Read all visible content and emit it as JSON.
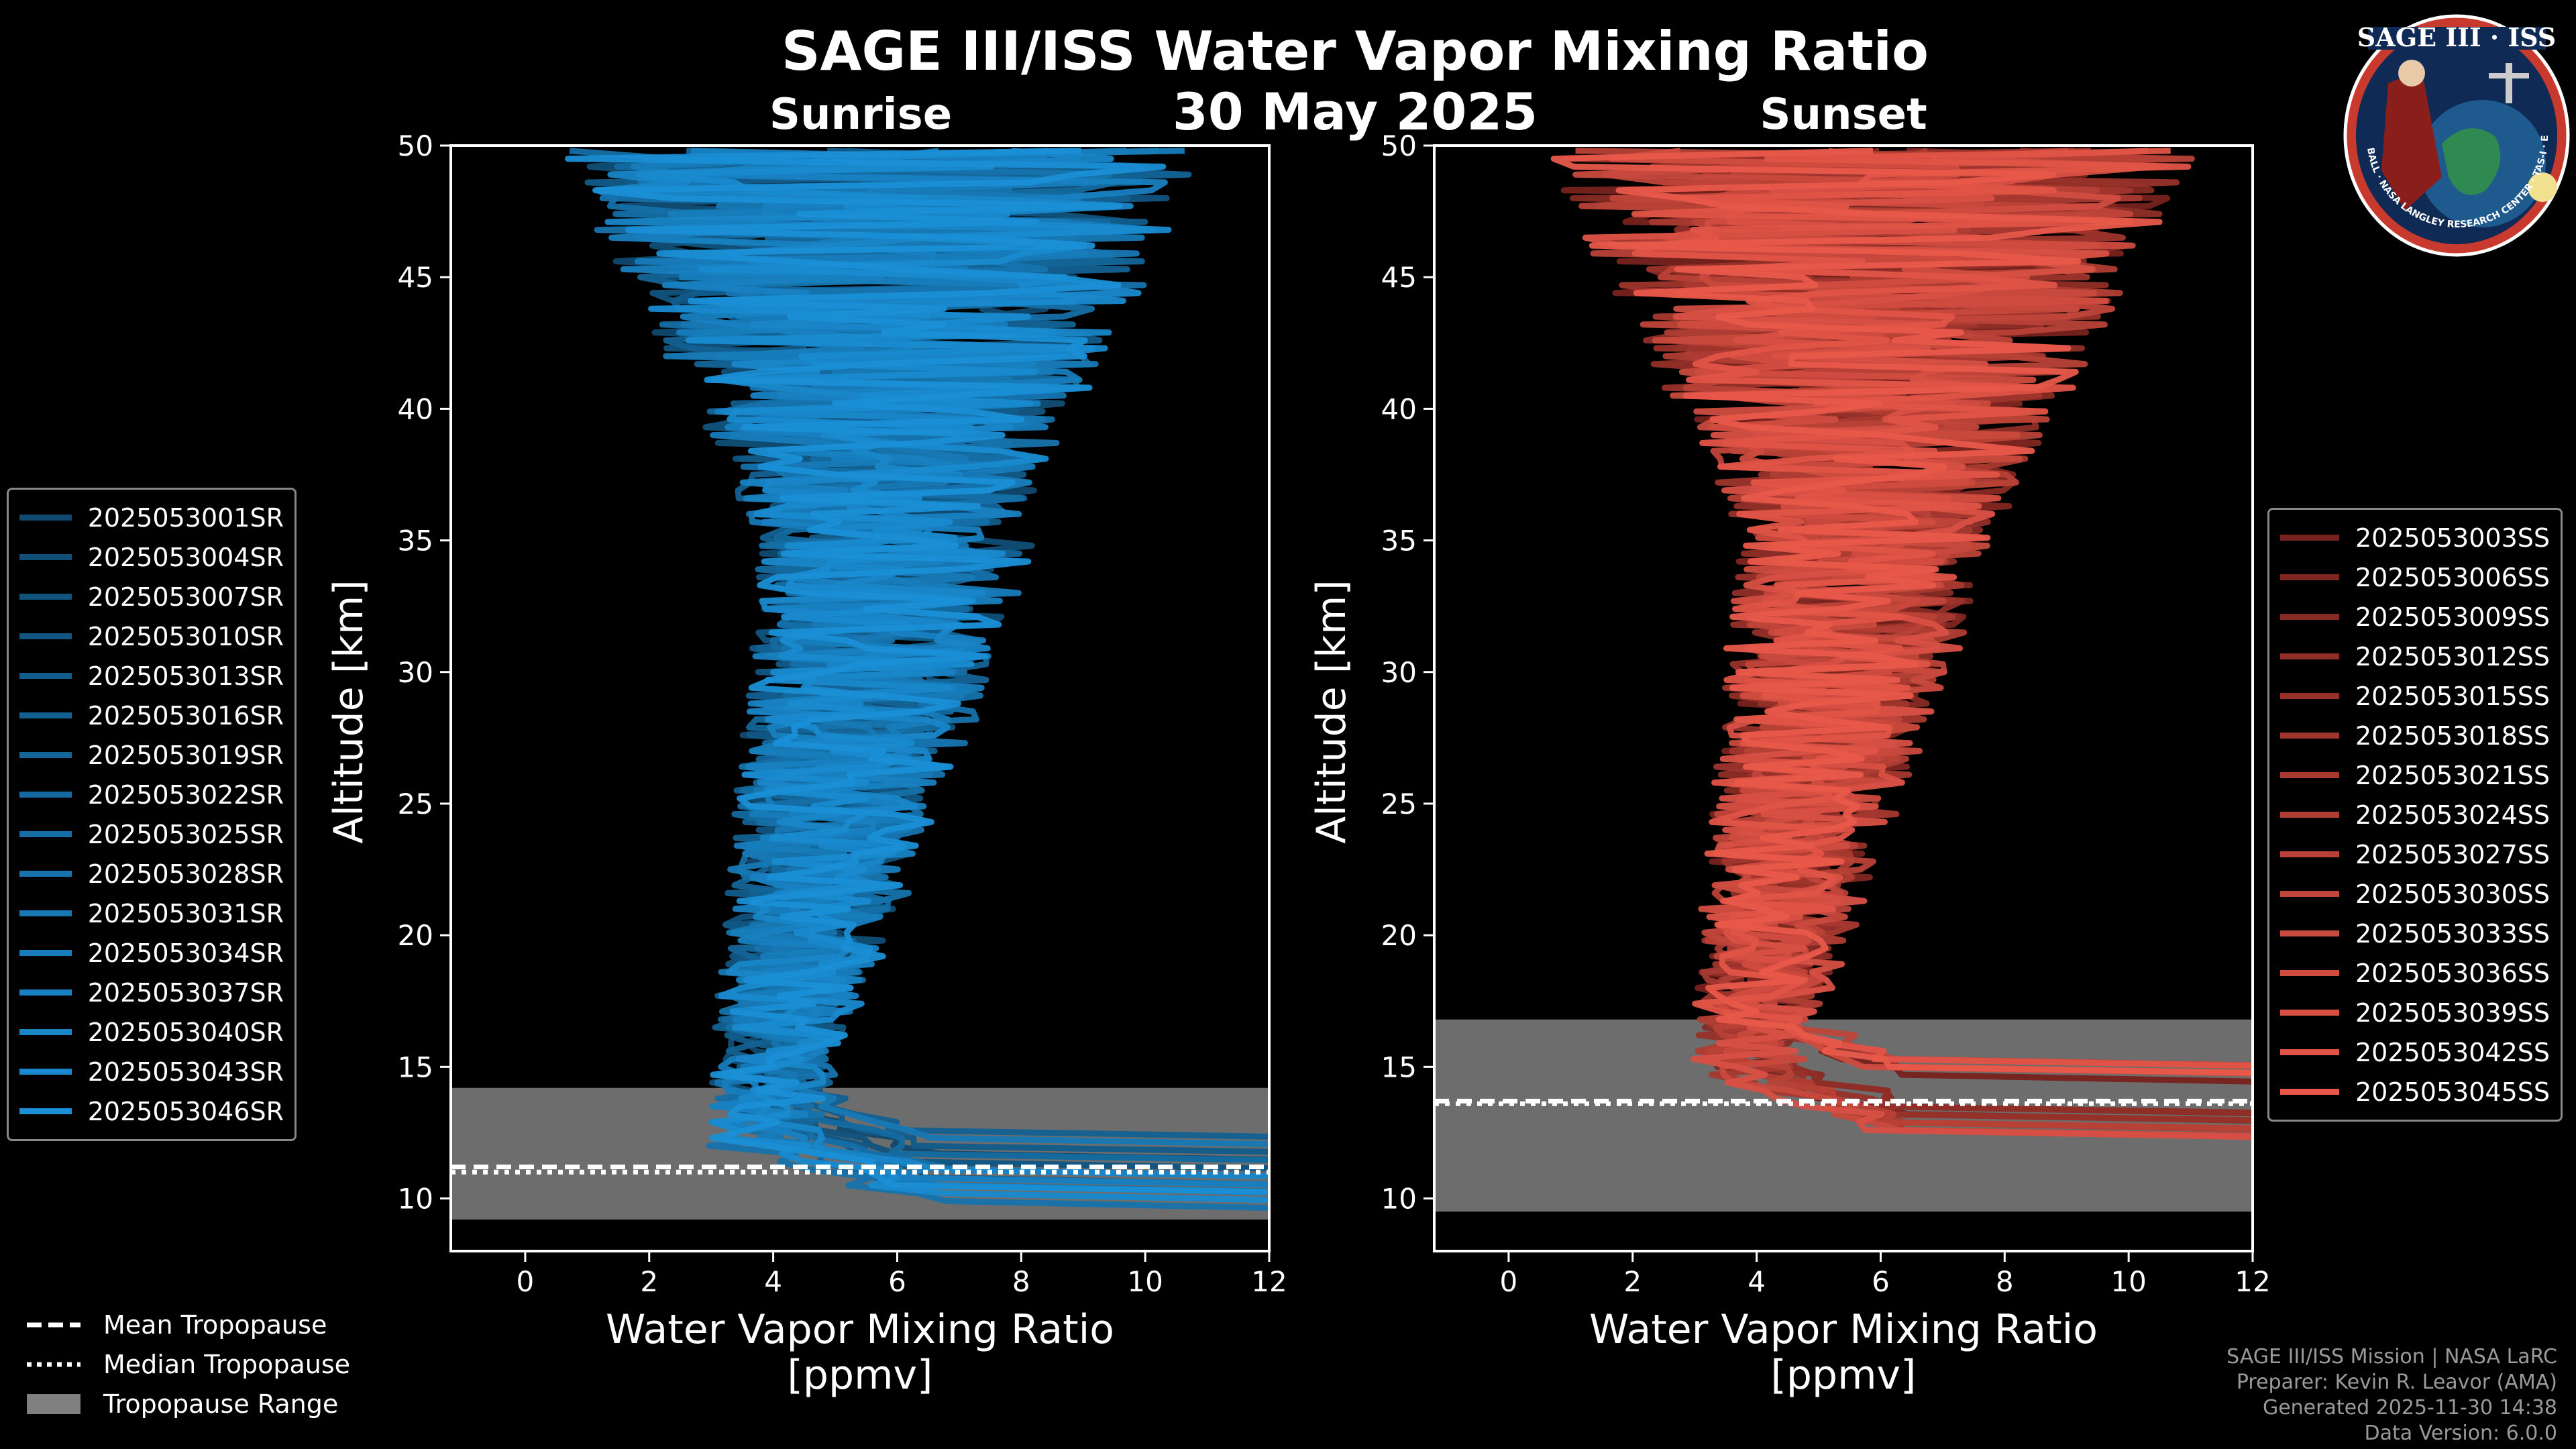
{
  "title": "SAGE III/ISS Water Vapor Mixing Ratio",
  "date": "30 May 2025",
  "colors": {
    "sunrise": "#1a8fd6",
    "sunset": "#e8584a",
    "tropopause_band": "#808080"
  },
  "chart_data": [
    {
      "type": "line",
      "title": "Sunrise",
      "xlabel": "Water Vapor Mixing Ratio",
      "xunit": "[ppmv]",
      "ylabel": "Altitude [km]",
      "xlim": [
        -1.2,
        12
      ],
      "ylim": [
        8,
        50
      ],
      "xticks": [
        0,
        2,
        4,
        6,
        8,
        10,
        12
      ],
      "yticks": [
        10,
        15,
        20,
        25,
        30,
        35,
        40,
        45,
        50
      ],
      "tropopause": {
        "mean": 11.2,
        "median": 11.0,
        "range": [
          9.2,
          14.2
        ]
      },
      "series": [
        "2025053001SR",
        "2025053004SR",
        "2025053007SR",
        "2025053010SR",
        "2025053013SR",
        "2025053016SR",
        "2025053019SR",
        "2025053022SR",
        "2025053025SR",
        "2025053028SR",
        "2025053031SR",
        "2025053034SR",
        "2025053037SR",
        "2025053040SR",
        "2025053043SR",
        "2025053046SR"
      ]
    },
    {
      "type": "line",
      "title": "Sunset",
      "xlabel": "Water Vapor Mixing Ratio",
      "xunit": "[ppmv]",
      "ylabel": "Altitude [km]",
      "xlim": [
        -1.2,
        12
      ],
      "ylim": [
        8,
        50
      ],
      "xticks": [
        0,
        2,
        4,
        6,
        8,
        10,
        12
      ],
      "yticks": [
        10,
        15,
        20,
        25,
        30,
        35,
        40,
        45,
        50
      ],
      "tropopause": {
        "mean": 13.7,
        "median": 13.6,
        "range": [
          9.5,
          16.8
        ]
      },
      "series": [
        "2025053003SS",
        "2025053006SS",
        "2025053009SS",
        "2025053012SS",
        "2025053015SS",
        "2025053018SS",
        "2025053021SS",
        "2025053024SS",
        "2025053027SS",
        "2025053030SS",
        "2025053033SS",
        "2025053036SS",
        "2025053039SS",
        "2025053042SS",
        "2025053045SS"
      ]
    }
  ],
  "tropopause_legend": {
    "mean": "Mean Tropopause",
    "median": "Median Tropopause",
    "range": "Tropopause Range"
  },
  "credits": {
    "line1": "SAGE III/ISS Mission | NASA LaRC",
    "line2": "Preparer: Kevin R. Leavor (AMA)",
    "line3": "Generated 2025-11-30 14:38",
    "line4": "Data Version: 6.0.0"
  },
  "logo": {
    "name": "SAGE III · ISS",
    "ring_text": "BALL · NASA LANGLEY RESEARCH CENTER · TAS-I · ESA"
  }
}
